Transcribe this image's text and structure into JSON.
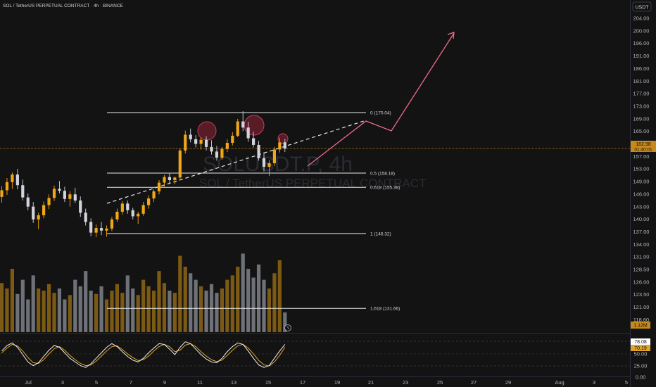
{
  "header": {
    "title": "SOL / TetherUS PERPETUAL CONTRACT · 4h · BINANCE",
    "currency": "USDT"
  },
  "watermark": {
    "symbol": "SOLUSDT.P, 4h",
    "name": "SOL / TetherUS PERPETUAL CONTRACT"
  },
  "colors": {
    "background": "#131313",
    "up": "#f0a616",
    "down": "#d1d4dc",
    "volume_up": "#7d5a14",
    "volume_down": "#6f7178",
    "projection": "#f06b8b",
    "current_price": "#c8881a",
    "stoch_k": "#f0f0f0",
    "stoch_d": "#e2a52a"
  },
  "price_axis": {
    "ticks": [
      "204.00",
      "200.00",
      "196.00",
      "191.00",
      "186.00",
      "181.00",
      "177.00",
      "173.00",
      "169.00",
      "165.00",
      "161.00",
      "157.00",
      "153.00",
      "149.00",
      "146.00",
      "143.00",
      "140.00",
      "137.00",
      "134.00",
      "131.00",
      "128.50",
      "126.00",
      "123.50",
      "121.00",
      "118.60"
    ],
    "current_price": "162.98",
    "countdown": "01:40:01",
    "volume_badge": "1.12M"
  },
  "stoch_axis": {
    "ticks": [
      "50.00",
      "25.00",
      "0.00"
    ],
    "k_value": "78.08",
    "d_value": "70.19"
  },
  "time_axis": {
    "ticks": [
      "Jul",
      "3",
      "5",
      "7",
      "9",
      "11",
      "13",
      "15",
      "17",
      "19",
      "21",
      "23",
      "25",
      "27",
      "29",
      "Aug",
      "3",
      "5"
    ]
  },
  "fib_levels": [
    {
      "label": "0 (170.04)",
      "price": 170.04
    },
    {
      "label": "0.5 (158.18)",
      "price": 158.18
    },
    {
      "label": "0.618 (155.38)",
      "price": 155.38
    },
    {
      "label": "1 (146.32)",
      "price": 146.32
    },
    {
      "label": "1.618 (131.66)",
      "price": 131.66
    }
  ],
  "chart_data": {
    "type": "candlestick",
    "symbol": "SOLUSDT.P",
    "timeframe": "4h",
    "price_range": [
      116.6,
      206.0
    ],
    "ohlc": [
      [
        153.5,
        155.6,
        152.4,
        154.8
      ],
      [
        154.8,
        157.2,
        153.9,
        156.4
      ],
      [
        156.4,
        158.3,
        155.1,
        157.9
      ],
      [
        157.9,
        159.0,
        155.0,
        155.8
      ],
      [
        155.8,
        156.9,
        152.8,
        153.4
      ],
      [
        153.4,
        154.2,
        150.9,
        151.6
      ],
      [
        151.6,
        152.5,
        148.4,
        149.1
      ],
      [
        149.1,
        150.4,
        147.2,
        149.9
      ],
      [
        149.9,
        152.6,
        149.3,
        151.9
      ],
      [
        151.9,
        154.0,
        151.1,
        153.3
      ],
      [
        153.3,
        155.7,
        152.7,
        155.1
      ],
      [
        155.1,
        156.6,
        154.2,
        154.7
      ],
      [
        154.7,
        155.5,
        152.5,
        153.1
      ],
      [
        153.1,
        154.6,
        151.6,
        154.0
      ],
      [
        154.0,
        155.3,
        152.3,
        152.8
      ],
      [
        152.8,
        153.6,
        149.6,
        150.4
      ],
      [
        150.4,
        151.2,
        147.9,
        148.6
      ],
      [
        148.6,
        149.3,
        145.8,
        146.5
      ],
      [
        146.5,
        148.1,
        145.6,
        147.4
      ],
      [
        147.4,
        148.6,
        146.0,
        146.9
      ],
      [
        146.9,
        147.9,
        145.7,
        147.3
      ],
      [
        147.3,
        149.6,
        146.8,
        149.1
      ],
      [
        149.1,
        151.2,
        148.6,
        150.6
      ],
      [
        150.6,
        152.7,
        150.0,
        152.2
      ],
      [
        152.2,
        152.8,
        150.2,
        150.9
      ],
      [
        150.9,
        151.4,
        149.1,
        149.7
      ],
      [
        149.7,
        150.6,
        148.2,
        150.2
      ],
      [
        150.2,
        152.5,
        149.8,
        151.9
      ],
      [
        151.9,
        153.8,
        151.2,
        153.2
      ],
      [
        153.2,
        155.0,
        152.5,
        154.6
      ],
      [
        154.6,
        156.8,
        154.0,
        156.3
      ],
      [
        156.3,
        157.8,
        155.5,
        157.4
      ],
      [
        157.4,
        158.2,
        156.1,
        156.8
      ],
      [
        156.8,
        157.5,
        156.0,
        157.3
      ],
      [
        157.3,
        163.0,
        157.0,
        162.6
      ],
      [
        162.6,
        166.5,
        162.0,
        165.7
      ],
      [
        165.7,
        166.9,
        164.2,
        164.8
      ],
      [
        164.8,
        165.6,
        163.2,
        163.9
      ],
      [
        163.9,
        165.2,
        162.8,
        164.7
      ],
      [
        164.7,
        165.4,
        162.6,
        163.3
      ],
      [
        163.3,
        164.6,
        161.8,
        162.4
      ],
      [
        162.4,
        163.5,
        160.6,
        161.2
      ],
      [
        161.2,
        163.3,
        160.8,
        162.9
      ],
      [
        162.9,
        164.8,
        162.3,
        164.1
      ],
      [
        164.1,
        166.2,
        163.6,
        165.5
      ],
      [
        165.5,
        168.8,
        165.2,
        168.3
      ],
      [
        168.3,
        170.3,
        166.4,
        167.1
      ],
      [
        167.1,
        168.2,
        164.3,
        165.0
      ],
      [
        165.0,
        166.3,
        163.2,
        163.7
      ],
      [
        163.7,
        164.5,
        160.6,
        161.1
      ],
      [
        161.1,
        162.3,
        158.5,
        159.4
      ],
      [
        159.4,
        160.7,
        157.6,
        160.1
      ],
      [
        160.1,
        163.3,
        159.6,
        162.8
      ],
      [
        162.8,
        165.1,
        162.2,
        164.2
      ],
      [
        164.2,
        164.9,
        162.3,
        162.98
      ]
    ],
    "volume": [
      45,
      40,
      58,
      35,
      48,
      30,
      52,
      40,
      38,
      44,
      36,
      40,
      30,
      34,
      48,
      42,
      56,
      38,
      35,
      42,
      30,
      38,
      44,
      36,
      52,
      40,
      34,
      48,
      42,
      38,
      56,
      45,
      38,
      36,
      70,
      60,
      54,
      48,
      42,
      38,
      44,
      36,
      40,
      48,
      52,
      60,
      72,
      58,
      50,
      62,
      48,
      40,
      54,
      66,
      18
    ],
    "stoch_k": [
      60,
      75,
      82,
      70,
      50,
      30,
      20,
      28,
      45,
      62,
      75,
      70,
      55,
      40,
      30,
      20,
      15,
      25,
      40,
      55,
      70,
      80,
      72,
      58,
      45,
      35,
      30,
      40,
      55,
      68,
      80,
      78,
      65,
      50,
      70,
      85,
      80,
      65,
      50,
      38,
      30,
      28,
      40,
      58,
      72,
      82,
      78,
      60,
      40,
      22,
      15,
      20,
      40,
      60,
      78.08
    ],
    "stoch_d": [
      55,
      68,
      78,
      74,
      60,
      42,
      28,
      26,
      36,
      52,
      66,
      72,
      62,
      48,
      36,
      26,
      20,
      22,
      32,
      46,
      60,
      72,
      74,
      64,
      52,
      42,
      34,
      36,
      46,
      60,
      72,
      78,
      72,
      58,
      62,
      76,
      80,
      72,
      58,
      46,
      36,
      31,
      35,
      48,
      62,
      74,
      78,
      68,
      52,
      34,
      22,
      19,
      30,
      48,
      70.19
    ]
  }
}
